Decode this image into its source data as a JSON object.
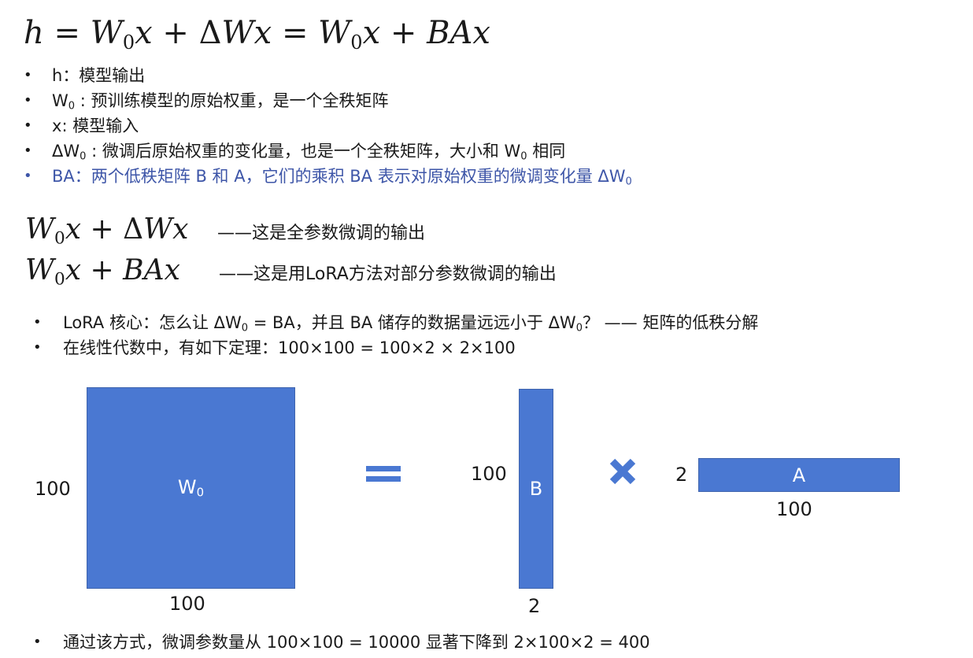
{
  "formula": {
    "h": "h",
    "eq": "=",
    "W": "W",
    "zero": "0",
    "x": "x",
    "plus": "+",
    "delta": "Δ",
    "B": "B",
    "A": "A"
  },
  "defs": [
    {
      "lead": "h",
      "text": "：模型输出"
    },
    {
      "lead": "W",
      "sub": "0",
      "text": " : 预训练模型的原始权重，是一个全秩矩阵"
    },
    {
      "lead": "x",
      "text": ": 模型输入"
    },
    {
      "lead": "ΔW",
      "sub": "0",
      "text": " : 微调后原始权重的变化量，也是一个全秩矩阵，大小和 W",
      "sub2": "0",
      "text2": " 相同"
    },
    {
      "lead": "BA",
      "text": "：两个低秩矩阵 B 和 A，它们的乘积 BA 表示对原始权重的微调变化量 ΔW",
      "sub": "0"
    }
  ],
  "comparison": {
    "full_note": "——这是全参数微调的输出",
    "lora_note": "——这是用LoRA方法对部分参数微调的输出"
  },
  "core": {
    "item1_a": "LoRA 核心：怎么让 ΔW",
    "item1_sub": "0",
    "item1_b": " = BA，并且 BA 储存的数据量远远小于 ΔW",
    "item1_sub2": "0",
    "item1_c": "？ —— 矩阵的低秩分解",
    "item2": "在线性代数中，有如下定理：100×100 = 100×2  ×  2×100"
  },
  "diagram": {
    "w0_label": "W",
    "w0_sub": "0",
    "w0_height_label": "100",
    "w0_width_label": "100",
    "b_label": "B",
    "b_height_label": "100",
    "b_width_label": "2",
    "a_label": "A",
    "a_height_label": "2",
    "a_width_label": "100",
    "equals_icon": "equals-icon",
    "times_icon": "times-icon",
    "box_color": "#4a78d2"
  },
  "bottom": {
    "text": "通过该方式，微调参数量从 100×100 = 10000 显著下降到 2×100×2 = 400"
  }
}
